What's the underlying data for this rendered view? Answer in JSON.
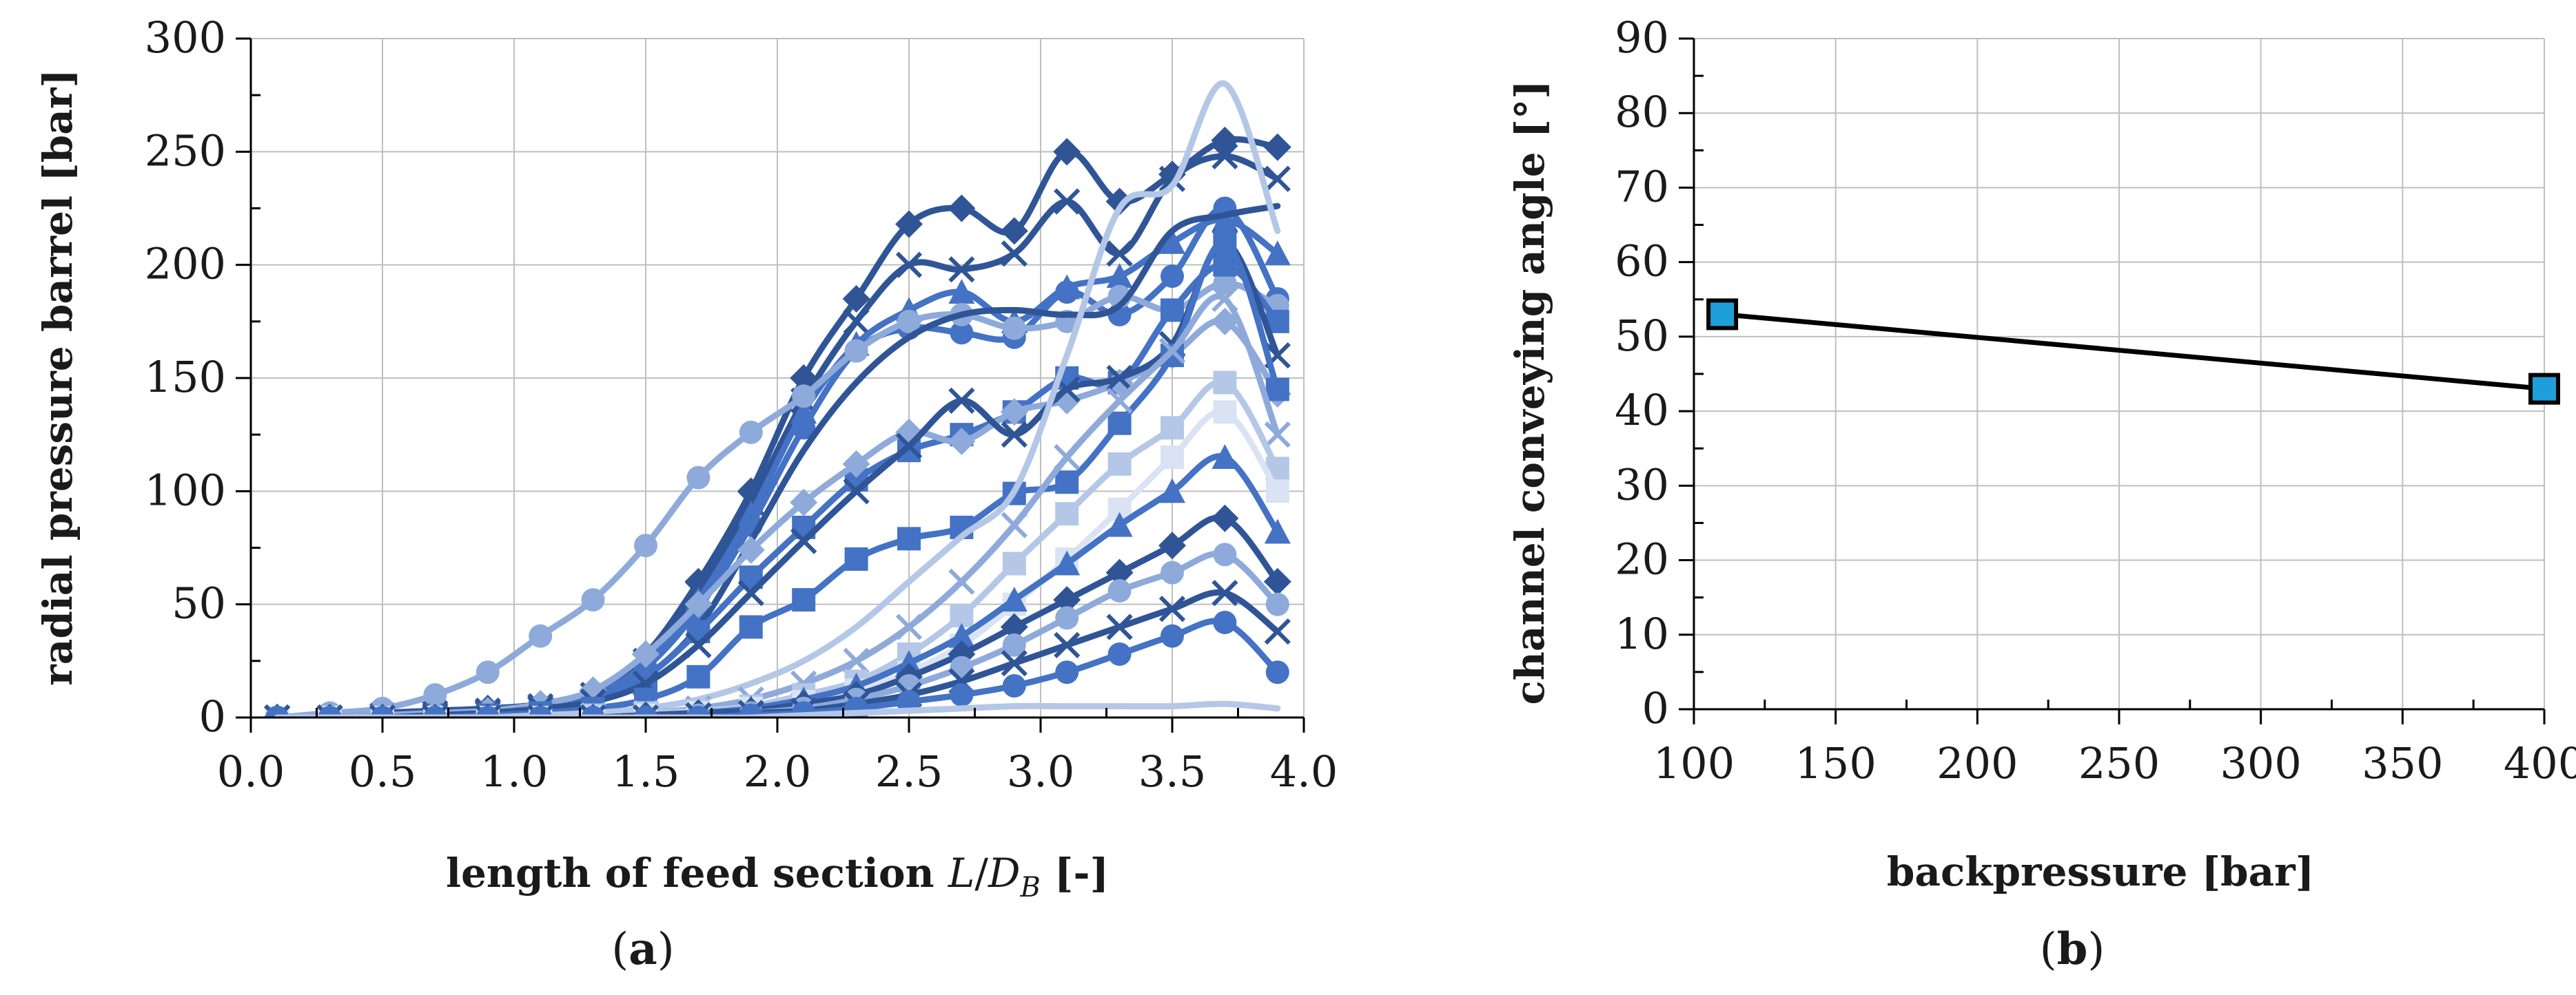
{
  "chart_data": [
    {
      "panel": "(a)",
      "panel_letter": "a",
      "type": "line",
      "xlabel_prefix": "length of feed section ",
      "xlabel_var": "L",
      "xlabel_sep": "/",
      "xlabel_var2": "D",
      "xlabel_sub": "B",
      "xlabel_suffix": " [-]",
      "ylabel": "radial pressure barrel [bar]",
      "xlim": [
        0,
        4
      ],
      "ylim": [
        0,
        300
      ],
      "grid": true,
      "x_tick_labels": [
        "0.0",
        "0.5",
        "1.0",
        "1.5",
        "2.0",
        "2.5",
        "3.0",
        "3.5",
        "4.0"
      ],
      "y_tick_labels": [
        "0",
        "50",
        "100",
        "150",
        "200",
        "250",
        "300"
      ],
      "x": [
        0.1,
        0.3,
        0.5,
        0.7,
        0.9,
        1.1,
        1.3,
        1.5,
        1.7,
        1.9,
        2.1,
        2.3,
        2.5,
        2.7,
        2.9,
        3.1,
        3.3,
        3.5,
        3.7,
        3.9
      ],
      "series": [
        {
          "color": "#2f5597",
          "marker": "diamond",
          "values": [
            0,
            0,
            2,
            3,
            4,
            6,
            12,
            28,
            60,
            100,
            150,
            185,
            218,
            225,
            215,
            250,
            228,
            240,
            255,
            252
          ]
        },
        {
          "color": "#2f5597",
          "marker": "x",
          "values": [
            0,
            0,
            1,
            2,
            3,
            5,
            10,
            25,
            55,
            95,
            140,
            175,
            200,
            198,
            205,
            228,
            205,
            238,
            248,
            238
          ]
        },
        {
          "color": "#4472c4",
          "marker": "triangle",
          "values": [
            0,
            0,
            1,
            2,
            3,
            5,
            10,
            24,
            52,
            90,
            135,
            165,
            180,
            188,
            175,
            190,
            195,
            210,
            220,
            205
          ]
        },
        {
          "color": "#4472c4",
          "marker": "circle",
          "values": [
            0,
            0,
            1,
            2,
            3,
            5,
            9,
            22,
            48,
            85,
            128,
            162,
            172,
            170,
            168,
            188,
            178,
            195,
            225,
            185
          ]
        },
        {
          "color": "#8eaadb",
          "marker": "circle",
          "values": [
            0,
            2,
            4,
            10,
            20,
            36,
            52,
            76,
            106,
            126,
            142,
            162,
            175,
            178,
            172,
            175,
            186,
            180,
            192,
            182
          ]
        },
        {
          "color": "#2f5597",
          "marker": "none",
          "values": [
            0,
            0,
            1,
            2,
            3,
            5,
            8,
            18,
            40,
            78,
            118,
            148,
            168,
            178,
            180,
            178,
            182,
            215,
            222,
            226
          ]
        },
        {
          "color": "#4472c4",
          "marker": "square",
          "values": [
            0,
            0,
            0,
            1,
            2,
            4,
            8,
            18,
            38,
            62,
            84,
            105,
            118,
            125,
            135,
            150,
            148,
            180,
            200,
            175
          ]
        },
        {
          "color": "#8eaadb",
          "marker": "diamond",
          "values": [
            0,
            0,
            1,
            2,
            3,
            6,
            12,
            28,
            50,
            74,
            95,
            112,
            126,
            122,
            135,
            140,
            148,
            160,
            175,
            143
          ]
        },
        {
          "color": "#2f5597",
          "marker": "x",
          "values": [
            0,
            0,
            0,
            1,
            2,
            4,
            7,
            15,
            32,
            55,
            78,
            100,
            120,
            140,
            125,
            145,
            150,
            165,
            210,
            160
          ]
        },
        {
          "color": "#4472c4",
          "marker": "square",
          "values": [
            0,
            0,
            0,
            0,
            1,
            2,
            4,
            8,
            18,
            40,
            52,
            70,
            79,
            84,
            99,
            104,
            130,
            160,
            210,
            145
          ]
        },
        {
          "color": "#b4c7e7",
          "marker": "none",
          "values": [
            0,
            0,
            0,
            0,
            0,
            1,
            2,
            4,
            8,
            15,
            25,
            40,
            60,
            80,
            100,
            160,
            225,
            235,
            280,
            215
          ]
        },
        {
          "color": "#8eaadb",
          "marker": "x",
          "values": [
            0,
            0,
            0,
            0,
            0,
            0,
            1,
            2,
            4,
            8,
            15,
            25,
            40,
            60,
            85,
            115,
            140,
            162,
            185,
            125
          ]
        },
        {
          "color": "#b4c7e7",
          "marker": "square",
          "values": [
            0,
            0,
            0,
            0,
            0,
            0,
            1,
            2,
            3,
            5,
            10,
            16,
            28,
            45,
            68,
            90,
            112,
            128,
            148,
            110
          ]
        },
        {
          "color": "#dae3f3",
          "marker": "square",
          "values": [
            0,
            0,
            0,
            0,
            0,
            0,
            0,
            1,
            2,
            4,
            7,
            12,
            20,
            32,
            50,
            70,
            92,
            115,
            135,
            100
          ]
        },
        {
          "color": "#4472c4",
          "marker": "triangle",
          "values": [
            0,
            0,
            0,
            0,
            0,
            0,
            0,
            1,
            2,
            4,
            8,
            14,
            24,
            36,
            52,
            68,
            85,
            100,
            115,
            82
          ]
        },
        {
          "color": "#2f5597",
          "marker": "diamond",
          "values": [
            0,
            0,
            0,
            0,
            0,
            0,
            0,
            1,
            2,
            3,
            6,
            10,
            18,
            28,
            40,
            52,
            64,
            76,
            88,
            60
          ]
        },
        {
          "color": "#8eaadb",
          "marker": "circle",
          "values": [
            0,
            0,
            0,
            0,
            0,
            0,
            0,
            0,
            1,
            2,
            4,
            8,
            14,
            22,
            32,
            44,
            56,
            64,
            72,
            50
          ]
        },
        {
          "color": "#2f5597",
          "marker": "x",
          "values": [
            0,
            0,
            0,
            0,
            0,
            0,
            0,
            0,
            1,
            2,
            3,
            6,
            10,
            16,
            24,
            32,
            40,
            48,
            55,
            38
          ]
        },
        {
          "color": "#4472c4",
          "marker": "circle",
          "values": [
            0,
            0,
            0,
            0,
            0,
            0,
            0,
            0,
            0,
            1,
            2,
            4,
            7,
            10,
            14,
            20,
            28,
            36,
            42,
            20
          ]
        },
        {
          "color": "#b4c7e7",
          "marker": "none",
          "values": [
            0,
            0,
            0,
            0,
            0,
            0,
            0,
            0,
            0,
            0,
            1,
            2,
            3,
            4,
            5,
            5,
            5,
            5,
            6,
            4
          ]
        }
      ]
    },
    {
      "panel": "(b)",
      "panel_letter": "b",
      "type": "line",
      "xlabel": "backpressure [bar]",
      "ylabel": "channel conveying angle [°]",
      "xlim": [
        100,
        400
      ],
      "ylim": [
        0,
        90
      ],
      "grid": true,
      "x_tick_labels": [
        "100",
        "150",
        "200",
        "250",
        "300",
        "350",
        "400"
      ],
      "y_tick_labels": [
        "0",
        "10",
        "20",
        "30",
        "40",
        "50",
        "60",
        "70",
        "80",
        "90"
      ],
      "x": [
        110,
        400
      ],
      "y": [
        53,
        43
      ],
      "line_color": "#000000",
      "marker": "square",
      "marker_color": "#1f9fd9"
    }
  ]
}
